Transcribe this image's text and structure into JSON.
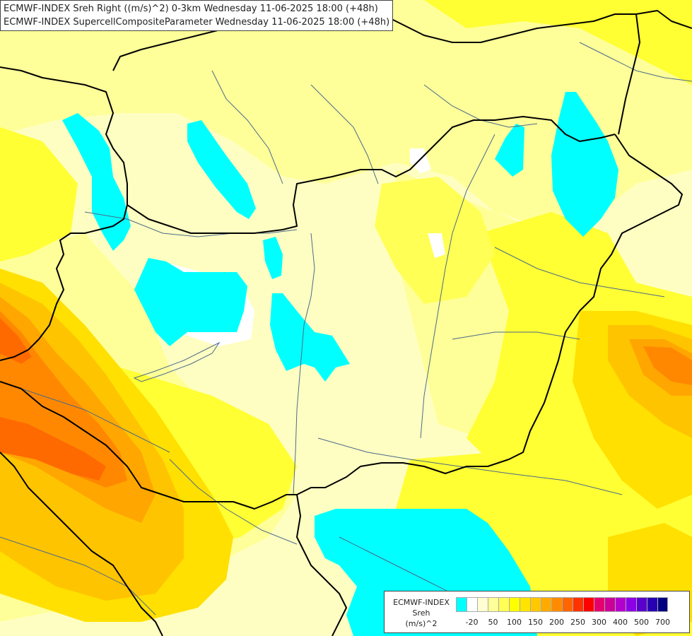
{
  "header": {
    "line1": "ECMWF-INDEX Sreh Right ((m/s)^2) 0-3km Wednesday 11-06-2025 18:00 (+48h)",
    "line2": "ECMWF-INDEX SupercellCompositeParameter Wednesday 11-06-2025 18:00 (+48h)"
  },
  "legend": {
    "model": "ECMWF-INDEX",
    "parameter": "Sreh",
    "unit": "(m/s)^2",
    "swatch_colors": [
      "#00ffff",
      "#ffffff",
      "#fffed2",
      "#ffff99",
      "#ffff55",
      "#ffff00",
      "#ffe400",
      "#ffc800",
      "#ffaa00",
      "#ff8c00",
      "#ff6600",
      "#ff3300",
      "#ff0000",
      "#e6006e",
      "#cc0099",
      "#b400cc",
      "#8c00e6",
      "#5a00cc",
      "#2800b4",
      "#000080"
    ],
    "tick_labels": [
      "-20",
      "50",
      "100",
      "150",
      "200",
      "250",
      "300",
      "400",
      "500",
      "700"
    ]
  },
  "map": {
    "colors": {
      "background": "#fffec2",
      "pale_yellow": "#ffff99",
      "yellow": "#ffff33",
      "gold": "#ffe000",
      "amber": "#ffc400",
      "orange": "#ffa600",
      "dark_orange": "#ff8800",
      "red_orange": "#ff6a00",
      "cyan": "#00ffff",
      "border": "#000000",
      "river": "#4a6a8a"
    }
  }
}
